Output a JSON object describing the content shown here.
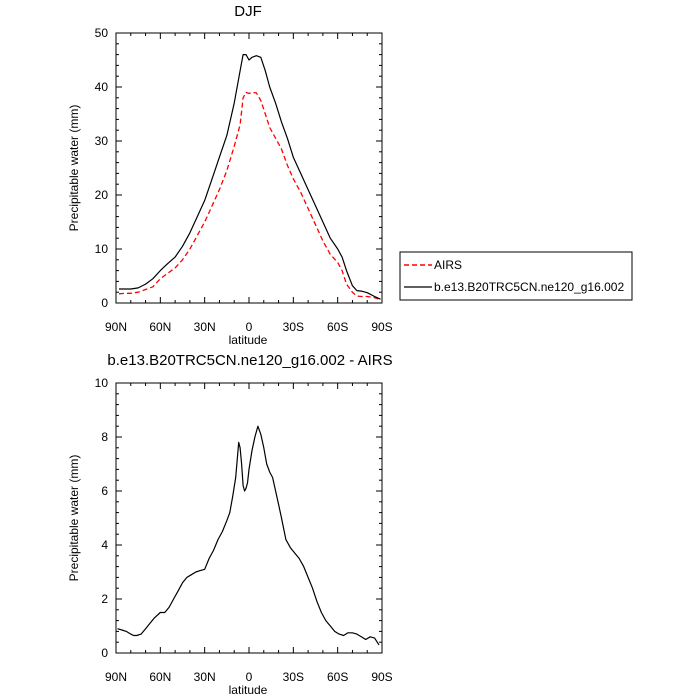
{
  "chart_data": [
    {
      "type": "line",
      "title": "DJF",
      "xlabel": "latitude",
      "ylabel": "Precipitable water (mm)",
      "xlim": [
        90,
        -90
      ],
      "ylim": [
        0,
        50
      ],
      "xticks": [
        {
          "value": 90,
          "label": "90N"
        },
        {
          "value": 60,
          "label": "60N"
        },
        {
          "value": 30,
          "label": "30N"
        },
        {
          "value": 0,
          "label": "0"
        },
        {
          "value": -30,
          "label": "30S"
        },
        {
          "value": -60,
          "label": "60S"
        },
        {
          "value": -90,
          "label": "90S"
        }
      ],
      "yticks": [
        0,
        10,
        20,
        30,
        40,
        50
      ],
      "grid": false,
      "legend": {
        "placement": "right"
      },
      "series": [
        {
          "name": "AIRS",
          "color": "#ff0000",
          "dash": "dashed",
          "x": [
            88,
            84,
            80,
            75,
            70,
            65,
            60,
            55,
            50,
            45,
            40,
            35,
            30,
            25,
            20,
            15,
            10,
            6,
            4,
            2,
            0,
            -2,
            -5,
            -8,
            -11,
            -14,
            -18,
            -22,
            -26,
            -30,
            -35,
            -40,
            -45,
            -50,
            -55,
            -60,
            -63,
            -66,
            -70,
            -73,
            -76,
            -80,
            -85,
            -89
          ],
          "y": [
            1.7,
            1.8,
            1.8,
            2,
            2.5,
            3,
            4.5,
            5.5,
            6.5,
            8,
            10,
            12.5,
            15,
            18,
            21,
            24.5,
            29,
            33,
            38,
            39,
            38.8,
            39,
            38.9,
            37.5,
            35,
            32.5,
            30.5,
            28.5,
            25.5,
            23,
            20.5,
            17.5,
            14.5,
            11.5,
            9,
            7.5,
            6,
            3.5,
            2,
            1.3,
            1.2,
            1.2,
            1,
            0.6
          ]
        },
        {
          "name": "b.e13.B20TRC5CN.ne120_g16.002",
          "color": "#000000",
          "dash": "solid",
          "x": [
            88,
            84,
            80,
            75,
            70,
            65,
            60,
            55,
            50,
            45,
            40,
            35,
            30,
            25,
            20,
            15,
            10,
            6,
            4,
            2,
            0,
            -2,
            -5,
            -8,
            -11,
            -14,
            -18,
            -22,
            -26,
            -30,
            -35,
            -40,
            -45,
            -50,
            -55,
            -60,
            -63,
            -66,
            -70,
            -73,
            -76,
            -80,
            -85,
            -89
          ],
          "y": [
            2.6,
            2.6,
            2.6,
            2.8,
            3.5,
            4.5,
            6,
            7.3,
            8.5,
            10.5,
            13,
            16,
            19,
            23,
            27,
            31,
            37,
            43,
            46,
            46,
            45,
            45.5,
            45.8,
            45.5,
            43,
            40,
            37,
            33.5,
            30.5,
            27,
            24,
            21,
            18,
            15,
            12,
            10,
            8.5,
            6,
            3.2,
            2.3,
            2.2,
            1.9,
            1.2,
            0.7
          ]
        }
      ]
    },
    {
      "type": "line",
      "title": "b.e13.B20TRC5CN.ne120_g16.002 - AIRS",
      "xlabel": "latitude",
      "ylabel": "Precipitable water (mm)",
      "xlim": [
        90,
        -90
      ],
      "ylim": [
        0,
        10
      ],
      "xticks": [
        {
          "value": 90,
          "label": "90N"
        },
        {
          "value": 60,
          "label": "60N"
        },
        {
          "value": 30,
          "label": "30N"
        },
        {
          "value": 0,
          "label": "0"
        },
        {
          "value": -30,
          "label": "30S"
        },
        {
          "value": -60,
          "label": "60S"
        },
        {
          "value": -90,
          "label": "90S"
        }
      ],
      "yticks": [
        0,
        2,
        4,
        6,
        8,
        10
      ],
      "grid": false,
      "series": [
        {
          "name": "b.e13.B20TRC5CN.ne120_g16.002 - AIRS",
          "color": "#000000",
          "dash": "solid",
          "x": [
            89,
            86,
            83,
            80,
            78,
            76,
            73,
            70,
            67,
            64,
            60,
            57,
            54,
            51,
            48,
            45,
            42,
            39,
            36,
            33,
            30,
            27,
            24,
            21,
            18,
            15,
            13,
            11,
            9,
            7,
            6,
            5,
            4,
            3,
            2,
            1,
            0,
            -2,
            -4,
            -6,
            -8,
            -10,
            -12,
            -14,
            -16,
            -18,
            -20,
            -22,
            -25,
            -28,
            -31,
            -34,
            -37,
            -40,
            -43,
            -46,
            -49,
            -52,
            -55,
            -58,
            -61,
            -64,
            -67,
            -70,
            -73,
            -76,
            -79,
            -82,
            -85,
            -88
          ],
          "y": [
            0.9,
            0.85,
            0.8,
            0.7,
            0.65,
            0.65,
            0.7,
            0.9,
            1.1,
            1.3,
            1.5,
            1.5,
            1.7,
            2,
            2.3,
            2.6,
            2.8,
            2.9,
            3,
            3.05,
            3.1,
            3.5,
            3.8,
            4.2,
            4.5,
            4.9,
            5.2,
            5.8,
            6.5,
            7.8,
            7.6,
            7,
            6.2,
            6,
            6.1,
            6.3,
            6.8,
            7.5,
            8.0,
            8.4,
            8.1,
            7.6,
            7,
            6.7,
            6.5,
            6,
            5.5,
            5,
            4.2,
            3.9,
            3.7,
            3.5,
            3.2,
            2.8,
            2.4,
            1.9,
            1.5,
            1.2,
            1.0,
            0.8,
            0.7,
            0.65,
            0.75,
            0.75,
            0.7,
            0.6,
            0.5,
            0.6,
            0.55,
            0.3
          ]
        }
      ]
    }
  ]
}
